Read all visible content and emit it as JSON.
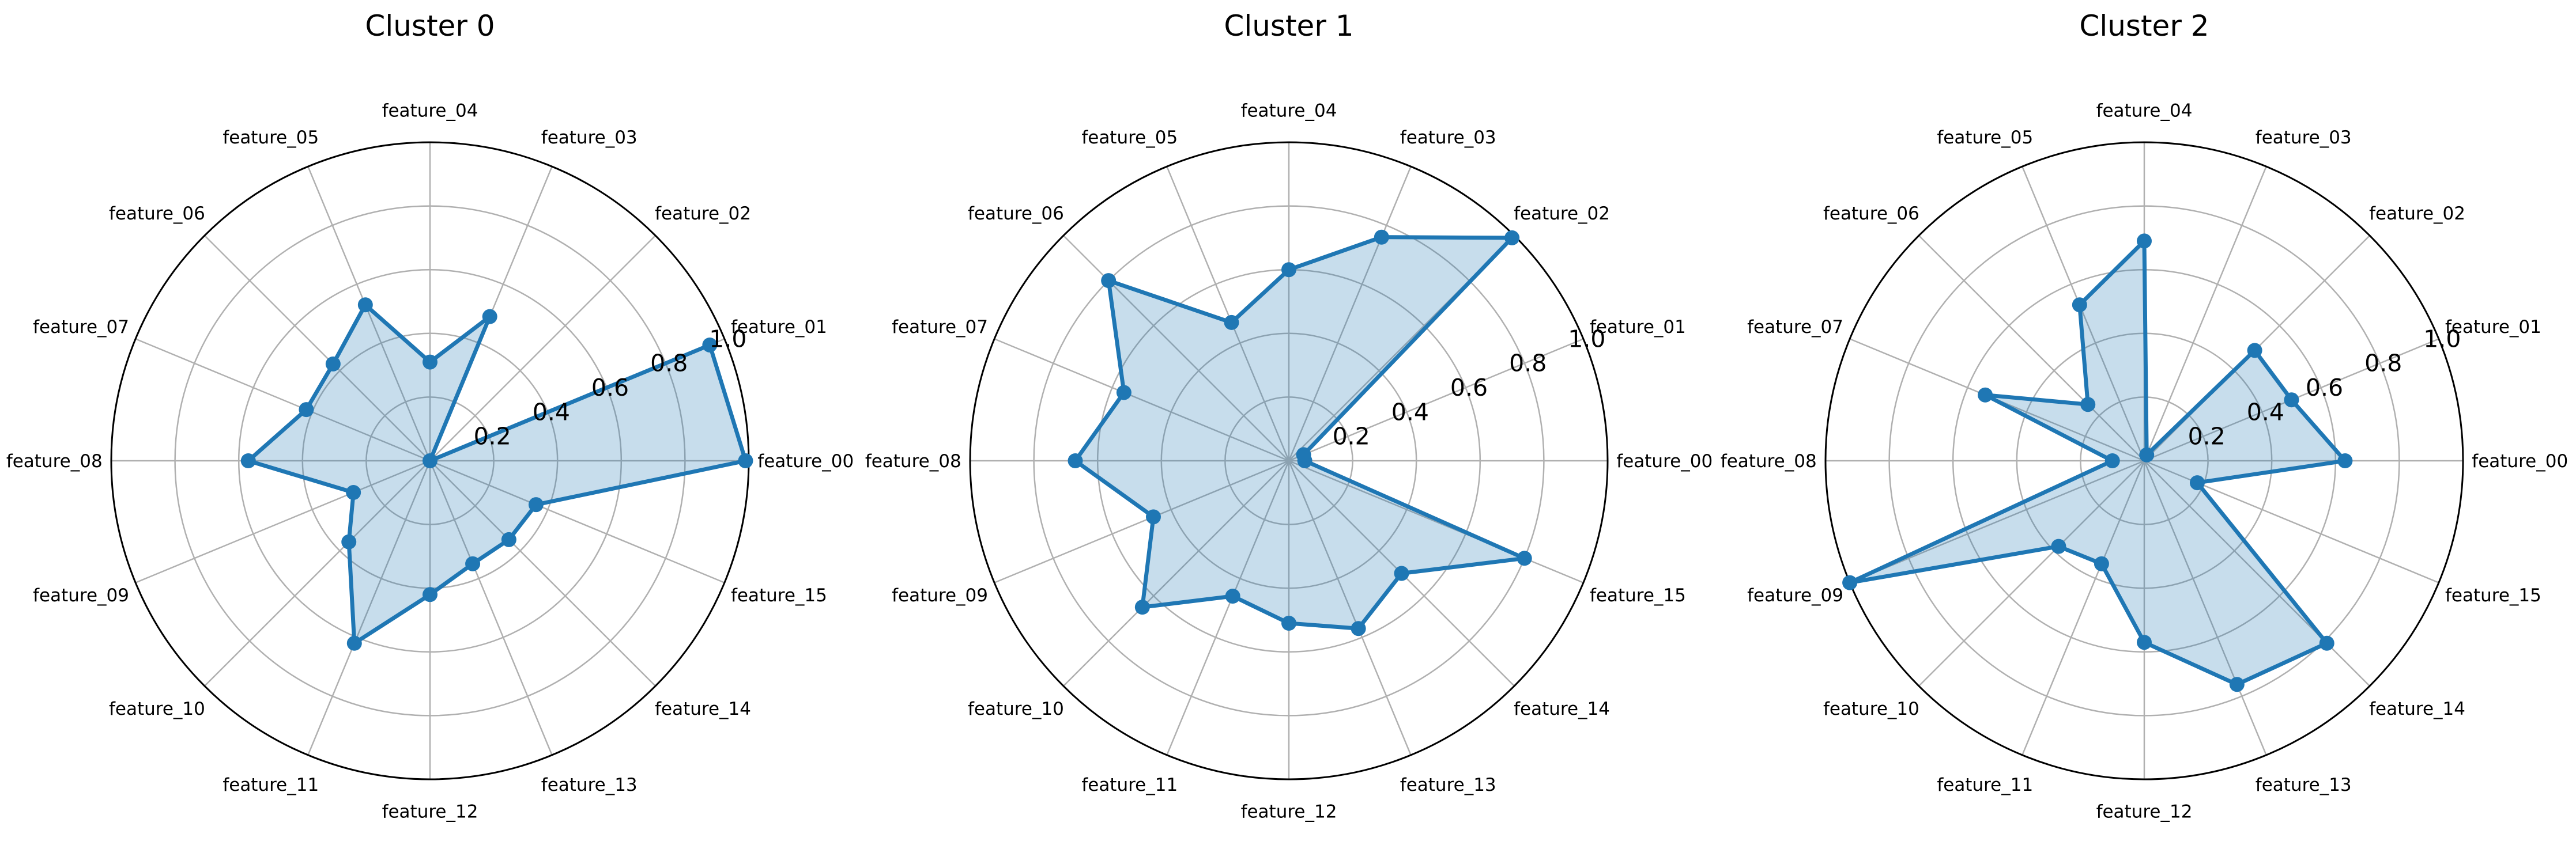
{
  "chart_data": [
    {
      "type": "radar",
      "title": "Cluster 0",
      "categories": [
        "feature_00",
        "feature_01",
        "feature_02",
        "feature_03",
        "feature_04",
        "feature_05",
        "feature_06",
        "feature_07",
        "feature_08",
        "feature_09",
        "feature_10",
        "feature_11",
        "feature_12",
        "feature_13",
        "feature_14",
        "feature_15"
      ],
      "series": [
        {
          "values": [
            0.99,
            0.95,
            0.0,
            0.49,
            0.31,
            0.53,
            0.43,
            0.42,
            0.57,
            0.26,
            0.36,
            0.62,
            0.42,
            0.35,
            0.35,
            0.36
          ]
        }
      ],
      "rlim": [
        0,
        1.0
      ],
      "rticks": [
        "0.2",
        "0.4",
        "0.6",
        "0.8",
        "1.0"
      ],
      "grid": true
    },
    {
      "type": "radar",
      "title": "Cluster 1",
      "categories": [
        "feature_00",
        "feature_01",
        "feature_02",
        "feature_03",
        "feature_04",
        "feature_05",
        "feature_06",
        "feature_07",
        "feature_08",
        "feature_09",
        "feature_10",
        "feature_11",
        "feature_12",
        "feature_13",
        "feature_14",
        "feature_15"
      ],
      "series": [
        {
          "values": [
            0.05,
            0.05,
            0.99,
            0.76,
            0.6,
            0.47,
            0.8,
            0.56,
            0.67,
            0.46,
            0.65,
            0.46,
            0.51,
            0.57,
            0.5,
            0.8
          ]
        }
      ],
      "rlim": [
        0,
        1.0
      ],
      "rticks": [
        "0.2",
        "0.4",
        "0.6",
        "0.8",
        "1.0"
      ],
      "grid": true
    },
    {
      "type": "radar",
      "title": "Cluster 2",
      "categories": [
        "feature_00",
        "feature_01",
        "feature_02",
        "feature_03",
        "feature_04",
        "feature_05",
        "feature_06",
        "feature_07",
        "feature_08",
        "feature_09",
        "feature_10",
        "feature_11",
        "feature_12",
        "feature_13",
        "feature_14",
        "feature_15"
      ],
      "series": [
        {
          "values": [
            0.63,
            0.5,
            0.49,
            0.02,
            0.69,
            0.53,
            0.25,
            0.54,
            0.1,
            1.0,
            0.38,
            0.35,
            0.57,
            0.76,
            0.81,
            0.18
          ]
        }
      ],
      "rlim": [
        0,
        1.0
      ],
      "rticks": [
        "0.2",
        "0.4",
        "0.6",
        "0.8",
        "1.0"
      ],
      "grid": true
    }
  ]
}
